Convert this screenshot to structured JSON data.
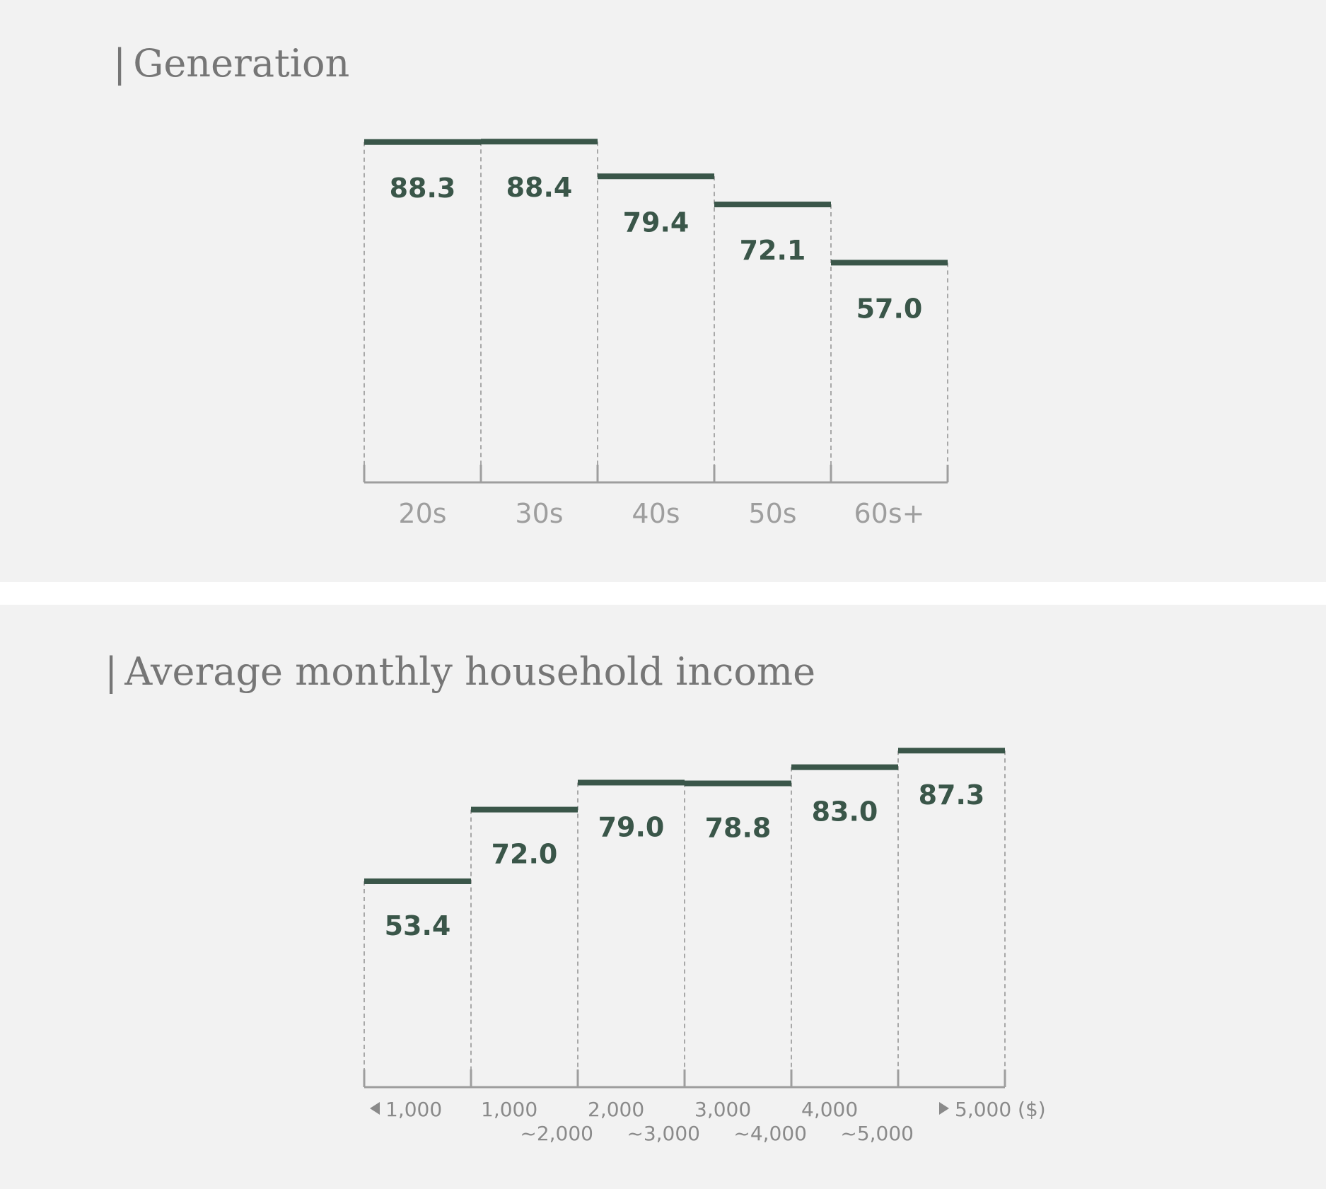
{
  "chart_data": [
    {
      "type": "bar",
      "title": "Generation",
      "categories": [
        "20s",
        "30s",
        "40s",
        "50s",
        "60s+"
      ],
      "values": [
        88.3,
        88.4,
        79.4,
        72.1,
        57.0
      ],
      "value_labels": [
        "88.3",
        "88.4",
        "79.4",
        "72.1",
        "57.0"
      ],
      "xlabel": "",
      "ylabel": "",
      "ylim": [
        0,
        100
      ],
      "grid": false,
      "bar_color": "#3a5649"
    },
    {
      "type": "bar",
      "title": "Average monthly household income",
      "categories": [
        {
          "line1": "1,000",
          "line2": "",
          "marker": "less-than-arrow"
        },
        {
          "line1": "1,000",
          "line2": "~2,000"
        },
        {
          "line1": "2,000",
          "line2": "~3,000"
        },
        {
          "line1": "3,000",
          "line2": "~4,000"
        },
        {
          "line1": "4,000",
          "line2": "~5,000"
        },
        {
          "line1": "5,000 ($)",
          "line2": "",
          "marker": "more-than-arrow"
        }
      ],
      "values": [
        53.4,
        72.0,
        79.0,
        78.8,
        83.0,
        87.3
      ],
      "value_labels": [
        "53.4",
        "72.0",
        "79.0",
        "78.8",
        "83.0",
        "87.3"
      ],
      "xlabel": "",
      "ylabel": "",
      "ylim": [
        0,
        100
      ],
      "grid": false,
      "bar_color": "#3a5649"
    }
  ],
  "colors": {
    "panel_background": "#f2f2f2",
    "bar": "#3a5649",
    "axis": "#9e9e9e",
    "title": "#767676",
    "divider": "#ffffff"
  }
}
